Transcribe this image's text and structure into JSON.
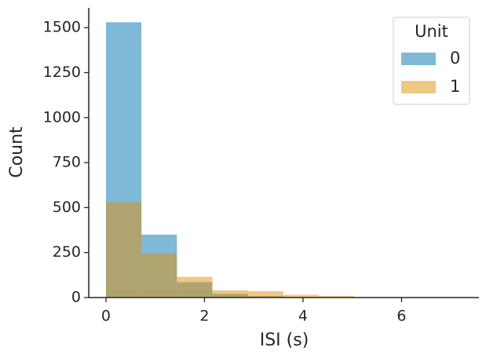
{
  "chart_data": {
    "type": "histogram",
    "xlabel": "ISI (s)",
    "ylabel": "Count",
    "bins": [
      0,
      0.72,
      1.44,
      2.16,
      2.88,
      3.6,
      4.32,
      5.04,
      5.76,
      6.48,
      7.2
    ],
    "series": [
      {
        "name": "0",
        "color": "#0173b2",
        "values": [
          1530,
          350,
          85,
          20,
          8,
          3,
          2,
          1,
          1,
          1
        ]
      },
      {
        "name": "1",
        "color": "#de8f05",
        "values": [
          530,
          245,
          115,
          40,
          35,
          15,
          8,
          2,
          1,
          0
        ]
      }
    ],
    "alpha": 0.5,
    "legend_title": "Unit",
    "legend": "upper right",
    "xlim": [
      -0.35,
      7.57
    ],
    "ylim": [
      0,
      1610
    ],
    "xticks": [
      0,
      2,
      4,
      6
    ],
    "yticks": [
      0,
      250,
      500,
      750,
      1000,
      1250,
      1500
    ]
  }
}
